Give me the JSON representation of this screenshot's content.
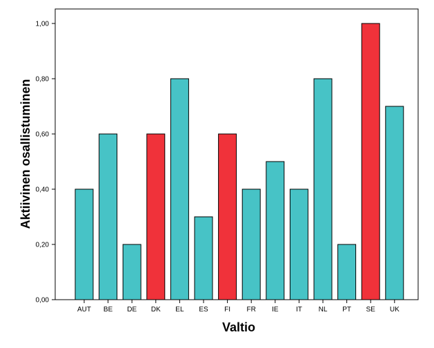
{
  "chart_data": {
    "type": "bar",
    "title": "",
    "xlabel": "Valtio",
    "ylabel": "Aktiivinen osallistuminen",
    "ylim": [
      0,
      1.0
    ],
    "yticks": [
      0.0,
      0.2,
      0.4,
      0.6,
      0.8,
      1.0
    ],
    "ytick_labels": [
      "0,00",
      "0,20",
      "0,40",
      "0,60",
      "0,80",
      "1,00"
    ],
    "categories": [
      "AUT",
      "BE",
      "DE",
      "DK",
      "EL",
      "ES",
      "FI",
      "FR",
      "IE",
      "IT",
      "NL",
      "PT",
      "SE",
      "UK"
    ],
    "values": [
      0.4,
      0.6,
      0.2,
      0.6,
      0.8,
      0.3,
      0.6,
      0.4,
      0.5,
      0.4,
      0.8,
      0.2,
      1.0,
      0.7
    ],
    "bar_colors": [
      "#47c3c6",
      "#47c3c6",
      "#47c3c6",
      "#f0323a",
      "#47c3c6",
      "#47c3c6",
      "#f0323a",
      "#47c3c6",
      "#47c3c6",
      "#47c3c6",
      "#47c3c6",
      "#47c3c6",
      "#f0323a",
      "#47c3c6"
    ],
    "grid": false,
    "legend": "none"
  }
}
